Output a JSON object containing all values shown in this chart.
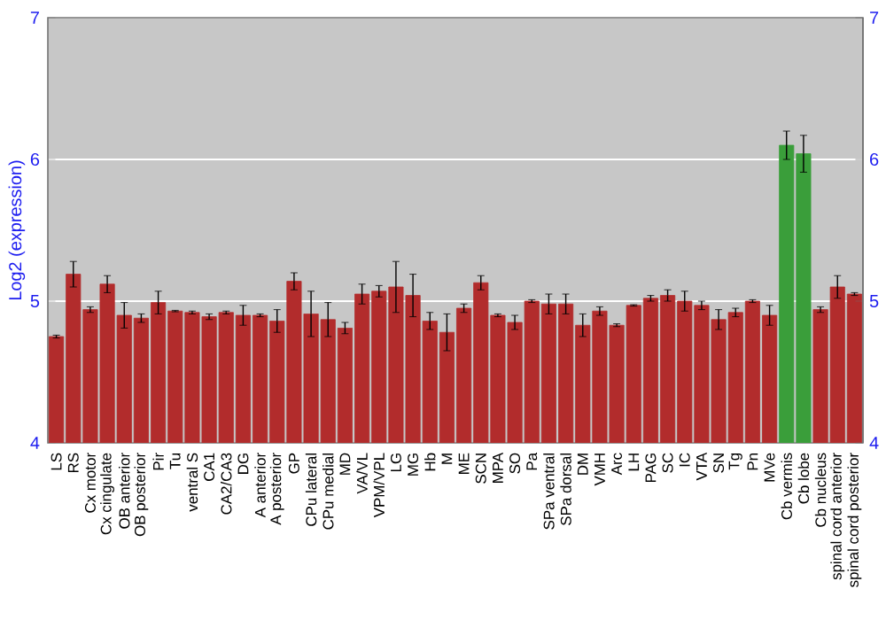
{
  "chart_data": {
    "type": "bar",
    "ylabel": "Log2 (expression)",
    "categories": [
      "LS",
      "RS",
      "Cx motor",
      "Cx cingulate",
      "OB anterior",
      "OB posterior",
      "Pir",
      "Tu",
      "ventral S",
      "CA1",
      "CA2/CA3",
      "DG",
      "A anterior",
      "A posterior",
      "GP",
      "CPu lateral",
      "CPu medial",
      "MD",
      "VA/VL",
      "VPM/VPL",
      "LG",
      "MG",
      "Hb",
      "M",
      "ME",
      "SCN",
      "MPA",
      "SO",
      "Pa",
      "SPa ventral",
      "SPa dorsal",
      "DM",
      "VMH",
      "Arc",
      "LH",
      "PAG",
      "SC",
      "IC",
      "VTA",
      "SN",
      "Tg",
      "Pn",
      "MVe",
      "Cb vermis",
      "Cb lobe",
      "Cb nucleus",
      "spinal cord anterior",
      "spinal cord posterior"
    ],
    "values": [
      4.75,
      5.19,
      4.94,
      5.12,
      4.9,
      4.88,
      4.99,
      4.93,
      4.92,
      4.89,
      4.92,
      4.9,
      4.9,
      4.86,
      5.14,
      4.91,
      4.87,
      4.81,
      5.05,
      5.07,
      5.1,
      5.04,
      4.86,
      4.78,
      4.95,
      5.13,
      4.9,
      4.85,
      5.0,
      4.98,
      4.98,
      4.83,
      4.93,
      4.83,
      4.97,
      5.02,
      5.04,
      5.0,
      4.97,
      4.87,
      4.92,
      5.0,
      4.9,
      6.1,
      6.04,
      4.94,
      5.1,
      5.05
    ],
    "errors": [
      0.01,
      0.09,
      0.02,
      0.06,
      0.09,
      0.03,
      0.08,
      0.005,
      0.01,
      0.02,
      0.01,
      0.07,
      0.01,
      0.08,
      0.06,
      0.16,
      0.12,
      0.04,
      0.07,
      0.04,
      0.18,
      0.15,
      0.06,
      0.13,
      0.03,
      0.05,
      0.01,
      0.05,
      0.01,
      0.07,
      0.07,
      0.08,
      0.03,
      0.01,
      0.005,
      0.02,
      0.04,
      0.07,
      0.03,
      0.07,
      0.03,
      0.01,
      0.07,
      0.1,
      0.13,
      0.02,
      0.08,
      0.01
    ],
    "colors": [
      "#b22c2c",
      "#b22c2c",
      "#b22c2c",
      "#b22c2c",
      "#b22c2c",
      "#b22c2c",
      "#b22c2c",
      "#b22c2c",
      "#b22c2c",
      "#b22c2c",
      "#b22c2c",
      "#b22c2c",
      "#b22c2c",
      "#b22c2c",
      "#b22c2c",
      "#b22c2c",
      "#b22c2c",
      "#b22c2c",
      "#b22c2c",
      "#b22c2c",
      "#b22c2c",
      "#b22c2c",
      "#b22c2c",
      "#b22c2c",
      "#b22c2c",
      "#b22c2c",
      "#b22c2c",
      "#b22c2c",
      "#b22c2c",
      "#b22c2c",
      "#b22c2c",
      "#b22c2c",
      "#b22c2c",
      "#b22c2c",
      "#b22c2c",
      "#b22c2c",
      "#b22c2c",
      "#b22c2c",
      "#b22c2c",
      "#b22c2c",
      "#b22c2c",
      "#b22c2c",
      "#b22c2c",
      "#3a9e3a",
      "#3a9e3a",
      "#b22c2c",
      "#b22c2c",
      "#b22c2c"
    ],
    "ylim": [
      4,
      7
    ],
    "yticks": [
      4,
      5,
      6,
      7
    ],
    "y2lim": [
      4,
      7
    ],
    "y2ticks": [
      4,
      5,
      6,
      7
    ],
    "grid": "y"
  }
}
